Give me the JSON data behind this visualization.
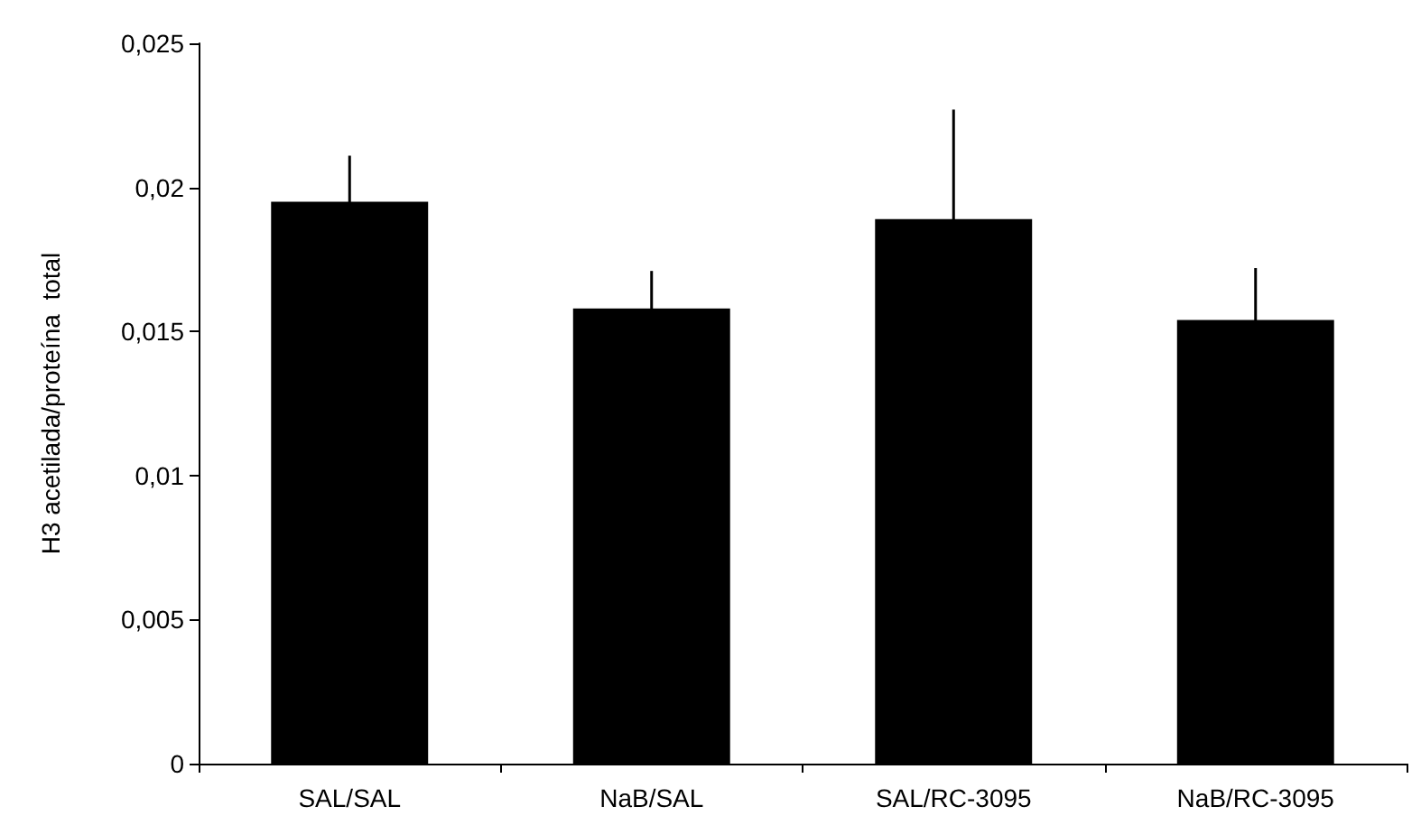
{
  "chart_data": {
    "type": "bar",
    "ylabel": "H3 acetilada/proteína  total",
    "categories": [
      "SAL/SAL",
      "NaB/SAL",
      "SAL/RC-3095",
      "NaB/RC-3095"
    ],
    "values": [
      0.0195,
      0.0158,
      0.0189,
      0.0154
    ],
    "errors": [
      0.0016,
      0.0013,
      0.0038,
      0.0018
    ],
    "color": "#000000",
    "ylim": [
      0,
      0.025
    ],
    "yticks": [
      {
        "value": 0,
        "label": "0"
      },
      {
        "value": 0.005,
        "label": "0,005"
      },
      {
        "value": 0.01,
        "label": "0,01"
      },
      {
        "value": 0.015,
        "label": "0,015"
      },
      {
        "value": 0.02,
        "label": "0,02"
      },
      {
        "value": 0.025,
        "label": "0,025"
      }
    ],
    "grid": false
  }
}
